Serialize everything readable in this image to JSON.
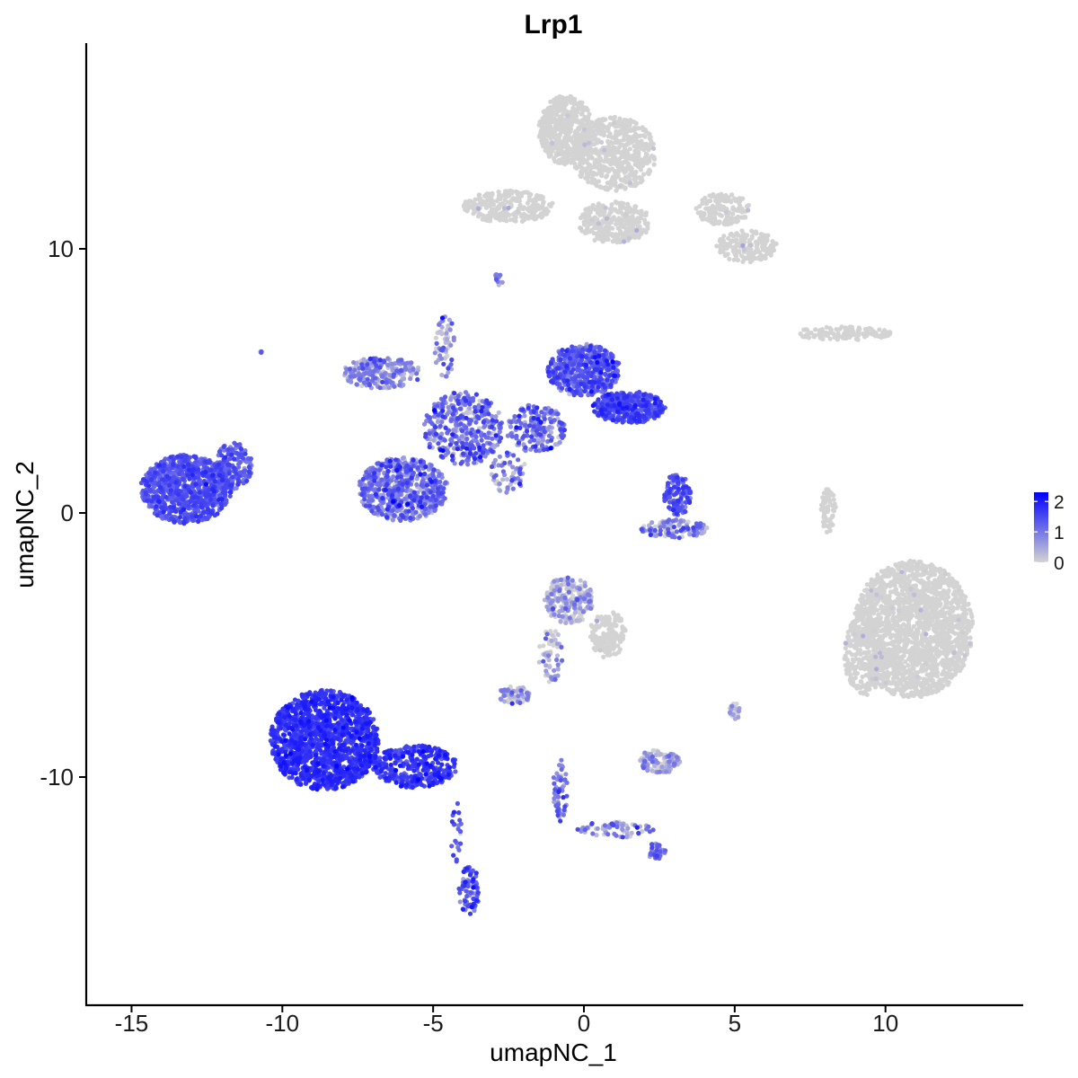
{
  "chart_data": {
    "type": "scatter",
    "title": "Lrp1",
    "xlabel": "umapNC_1",
    "ylabel": "umapNC_2",
    "xlim": [
      -16.5,
      14.5
    ],
    "ylim": [
      -18.5,
      17.8
    ],
    "x_ticks": [
      -15,
      -10,
      -5,
      0,
      5,
      10
    ],
    "x_tick_labels": [
      "-15",
      "-10",
      "-5",
      "0",
      "5",
      "10"
    ],
    "y_ticks": [
      -10,
      0,
      10
    ],
    "y_tick_labels": [
      "-10",
      "0",
      "10"
    ],
    "grid": false,
    "legend": {
      "position": "right",
      "type": "colorbar",
      "ticks": [
        0,
        1,
        2
      ],
      "tick_labels": [
        "0",
        "1",
        "2"
      ],
      "range": [
        0,
        2.3
      ],
      "low_color": "#d3d3d3",
      "high_color": "#0000ff"
    },
    "clusters": [
      {
        "cx": -13.2,
        "cy": 0.9,
        "rx": 1.5,
        "ry": 1.3,
        "expr": 1.3,
        "spread": 0.25,
        "n": 900
      },
      {
        "cx": -11.6,
        "cy": 1.8,
        "rx": 0.6,
        "ry": 0.9,
        "expr": 1.2,
        "spread": 0.3,
        "n": 150
      },
      {
        "cx": -8.6,
        "cy": -8.6,
        "rx": 1.8,
        "ry": 1.9,
        "expr": 1.7,
        "spread": 0.2,
        "n": 1400
      },
      {
        "cx": -5.6,
        "cy": -9.6,
        "rx": 1.4,
        "ry": 0.8,
        "expr": 1.6,
        "spread": 0.25,
        "n": 350
      },
      {
        "cx": -3.8,
        "cy": -14.3,
        "rx": 0.35,
        "ry": 0.9,
        "expr": 1.3,
        "spread": 0.3,
        "n": 80
      },
      {
        "cx": -4.2,
        "cy": -12.2,
        "rx": 0.2,
        "ry": 1.2,
        "expr": 1.2,
        "spread": 0.4,
        "n": 25
      },
      {
        "cx": -6.0,
        "cy": 0.9,
        "rx": 1.5,
        "ry": 1.2,
        "expr": 0.9,
        "spread": 0.45,
        "n": 650
      },
      {
        "cx": -6.7,
        "cy": 5.3,
        "rx": 1.3,
        "ry": 0.6,
        "expr": 0.6,
        "spread": 0.45,
        "n": 250
      },
      {
        "cx": -4.0,
        "cy": 3.2,
        "rx": 1.3,
        "ry": 1.4,
        "expr": 0.9,
        "spread": 0.5,
        "n": 400
      },
      {
        "cx": -4.6,
        "cy": 6.3,
        "rx": 0.35,
        "ry": 1.2,
        "expr": 0.6,
        "spread": 0.5,
        "n": 60
      },
      {
        "cx": 0.0,
        "cy": 5.4,
        "rx": 1.2,
        "ry": 1.0,
        "expr": 1.2,
        "spread": 0.35,
        "n": 500
      },
      {
        "cx": 1.5,
        "cy": 4.0,
        "rx": 1.2,
        "ry": 0.6,
        "expr": 1.4,
        "spread": 0.3,
        "n": 400
      },
      {
        "cx": -1.6,
        "cy": 3.2,
        "rx": 1.0,
        "ry": 0.9,
        "expr": 1.0,
        "spread": 0.45,
        "n": 200
      },
      {
        "cx": -2.5,
        "cy": 1.5,
        "rx": 0.6,
        "ry": 0.8,
        "expr": 0.8,
        "spread": 0.5,
        "n": 60
      },
      {
        "cx": 3.1,
        "cy": 0.7,
        "rx": 0.45,
        "ry": 0.8,
        "expr": 1.3,
        "spread": 0.3,
        "n": 120
      },
      {
        "cx": 3.0,
        "cy": -0.6,
        "rx": 1.1,
        "ry": 0.35,
        "expr": 0.6,
        "spread": 0.6,
        "n": 120
      },
      {
        "cx": -0.6,
        "cy": 14.5,
        "rx": 0.9,
        "ry": 1.3,
        "expr": 0.0,
        "spread": 0.15,
        "n": 500
      },
      {
        "cx": 1.0,
        "cy": 13.6,
        "rx": 1.4,
        "ry": 1.4,
        "expr": 0.05,
        "spread": 0.15,
        "n": 600
      },
      {
        "cx": -2.5,
        "cy": 11.6,
        "rx": 1.5,
        "ry": 0.6,
        "expr": 0.05,
        "spread": 0.2,
        "n": 250
      },
      {
        "cx": 1.0,
        "cy": 11.0,
        "rx": 1.2,
        "ry": 0.8,
        "expr": 0.05,
        "spread": 0.2,
        "n": 300
      },
      {
        "cx": 4.6,
        "cy": 11.5,
        "rx": 0.9,
        "ry": 0.6,
        "expr": 0.05,
        "spread": 0.2,
        "n": 150
      },
      {
        "cx": 5.4,
        "cy": 10.1,
        "rx": 1.0,
        "ry": 0.6,
        "expr": 0.1,
        "spread": 0.25,
        "n": 200
      },
      {
        "cx": 8.6,
        "cy": 6.8,
        "rx": 1.6,
        "ry": 0.25,
        "expr": 0.1,
        "spread": 0.3,
        "n": 130
      },
      {
        "cx": 8.1,
        "cy": 0.1,
        "rx": 0.25,
        "ry": 0.9,
        "expr": 0.02,
        "spread": 0.2,
        "n": 70
      },
      {
        "cx": 10.9,
        "cy": -4.4,
        "rx": 2.0,
        "ry": 2.6,
        "expr": 0.05,
        "spread": 0.15,
        "n": 1800
      },
      {
        "cx": 9.3,
        "cy": -5.4,
        "rx": 0.7,
        "ry": 1.5,
        "expr": 0.05,
        "spread": 0.2,
        "n": 250
      },
      {
        "cx": -0.5,
        "cy": -3.3,
        "rx": 0.8,
        "ry": 0.9,
        "expr": 0.2,
        "spread": 0.5,
        "n": 250
      },
      {
        "cx": 0.8,
        "cy": -4.6,
        "rx": 0.6,
        "ry": 0.9,
        "expr": 0.1,
        "spread": 0.4,
        "n": 150
      },
      {
        "cx": -1.1,
        "cy": -5.4,
        "rx": 0.4,
        "ry": 1.0,
        "expr": 0.3,
        "spread": 0.5,
        "n": 60
      },
      {
        "cx": -2.3,
        "cy": -6.9,
        "rx": 0.55,
        "ry": 0.35,
        "expr": 0.4,
        "spread": 0.5,
        "n": 70
      },
      {
        "cx": 2.5,
        "cy": -9.4,
        "rx": 0.7,
        "ry": 0.45,
        "expr": 0.3,
        "spread": 0.5,
        "n": 140
      },
      {
        "cx": 5.0,
        "cy": -7.5,
        "rx": 0.2,
        "ry": 0.3,
        "expr": 0.2,
        "spread": 0.5,
        "n": 25
      },
      {
        "cx": -0.8,
        "cy": -10.5,
        "rx": 0.25,
        "ry": 1.2,
        "expr": 0.8,
        "spread": 0.5,
        "n": 60
      },
      {
        "cx": 1.0,
        "cy": -12.0,
        "rx": 1.3,
        "ry": 0.3,
        "expr": 0.7,
        "spread": 0.5,
        "n": 70
      },
      {
        "cx": 2.4,
        "cy": -12.8,
        "rx": 0.3,
        "ry": 0.3,
        "expr": 0.9,
        "spread": 0.4,
        "n": 40
      },
      {
        "cx": -2.8,
        "cy": 8.9,
        "rx": 0.15,
        "ry": 0.3,
        "expr": 0.6,
        "spread": 0.5,
        "n": 12
      },
      {
        "cx": -10.7,
        "cy": 6.1,
        "rx": 0.1,
        "ry": 0.1,
        "expr": 0.6,
        "spread": 0.5,
        "n": 4
      }
    ]
  }
}
